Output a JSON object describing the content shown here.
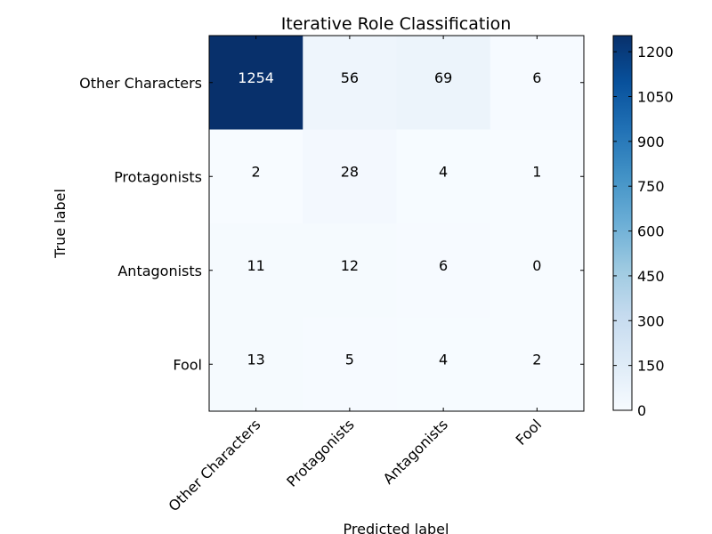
{
  "chart_data": {
    "type": "heatmap",
    "title": "Iterative Role Classification",
    "xlabel": "Predicted label",
    "ylabel": "True label",
    "x_categories": [
      "Other Characters",
      "Protagonists",
      "Antagonists",
      "Fool"
    ],
    "y_categories": [
      "Other Characters",
      "Protagonists",
      "Antagonists",
      "Fool"
    ],
    "values": [
      [
        1254,
        56,
        69,
        6
      ],
      [
        2,
        28,
        4,
        1
      ],
      [
        11,
        12,
        6,
        0
      ],
      [
        13,
        5,
        4,
        2
      ]
    ],
    "colorbar": {
      "min": 0,
      "max": 1254,
      "ticks": [
        0,
        150,
        300,
        450,
        600,
        750,
        900,
        1050,
        1200
      ]
    },
    "colormap": "Blues",
    "colormap_low": "#f7fbff",
    "colormap_high": "#08306b",
    "label_color": "#ffffff",
    "label_color_dark": "#000000",
    "grid": false
  }
}
